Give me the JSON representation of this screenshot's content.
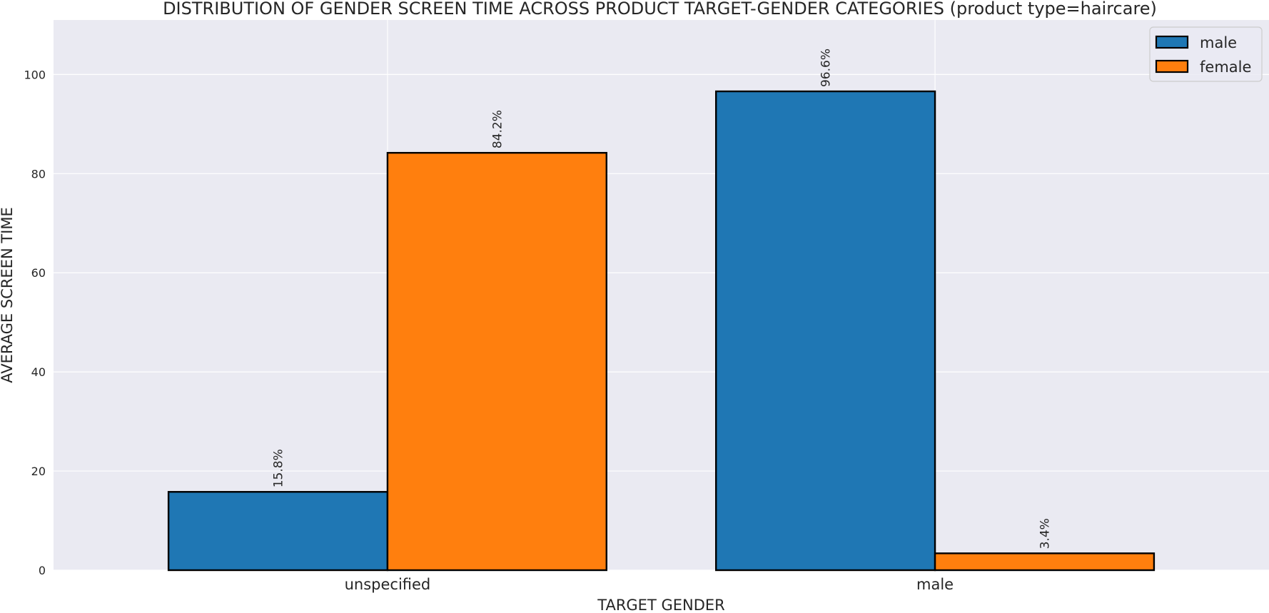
{
  "chart_data": {
    "type": "bar",
    "title": "DISTRIBUTION OF GENDER SCREEN TIME ACROSS PRODUCT TARGET-GENDER CATEGORIES (product type=haircare)",
    "xlabel": "TARGET GENDER",
    "ylabel": "AVERAGE SCREEN TIME",
    "categories": [
      "unspecified",
      "male"
    ],
    "series": [
      {
        "name": "male",
        "color": "#1f77b4",
        "values": [
          15.8,
          96.6
        ],
        "labels": [
          "15.8%",
          "96.6%"
        ]
      },
      {
        "name": "female",
        "color": "#ff7f0e",
        "values": [
          84.2,
          3.4
        ],
        "labels": [
          "84.2%",
          "3.4%"
        ]
      }
    ],
    "ylim": [
      0,
      111
    ],
    "yticks": [
      0,
      20,
      40,
      60,
      80,
      100
    ],
    "ytick_labels": [
      "0",
      "20",
      "40",
      "60",
      "80",
      "100"
    ],
    "grid": true,
    "legend_position": "top-right",
    "background_color": "#eaeaf2"
  }
}
